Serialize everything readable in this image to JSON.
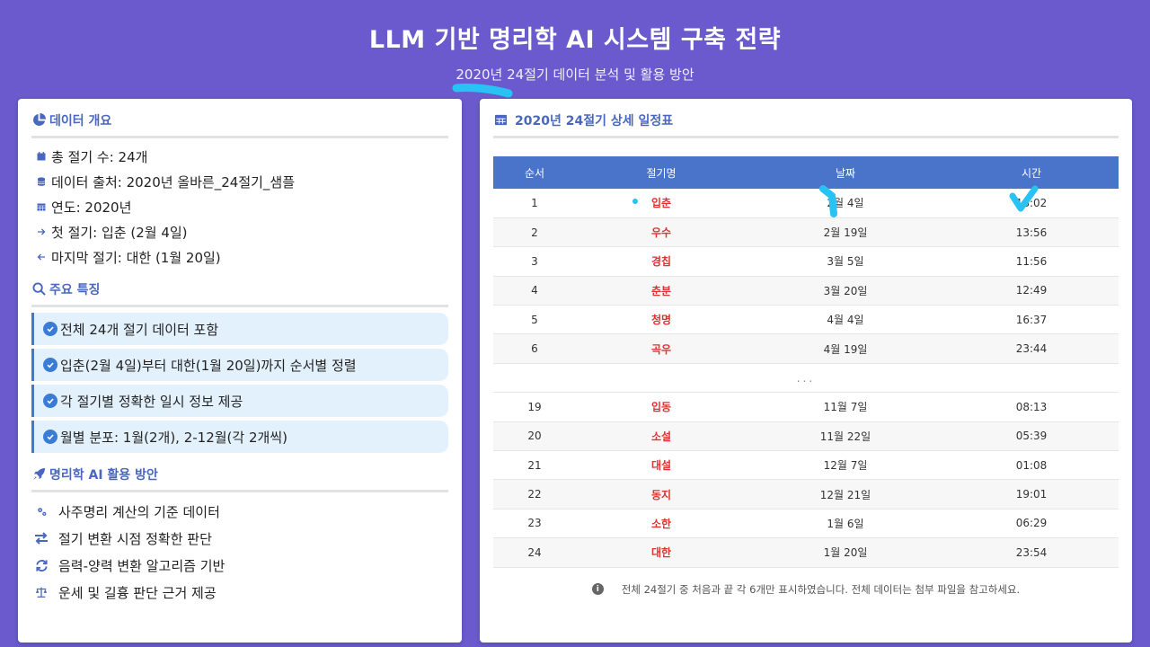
{
  "header": {
    "title": "LLM 기반 명리학 AI 시스템 구축 전략",
    "subtitle": "2020년 24절기 데이터 분석 및 활용 방안"
  },
  "overview": {
    "title": "데이터 개요",
    "items": [
      {
        "icon": "calendar-icon",
        "text": "총 절기 수: 24개"
      },
      {
        "icon": "database-icon",
        "text": "데이터 출처: 2020년 올바른_24절기_샘플"
      },
      {
        "icon": "calendar-grid-icon",
        "text": "연도: 2020년"
      },
      {
        "icon": "arrow-right-icon",
        "text": "첫 절기: 입춘 (2월 4일)"
      },
      {
        "icon": "arrow-left-icon",
        "text": "마지막 절기: 대한 (1월 20일)"
      }
    ]
  },
  "features": {
    "title": "주요 특징",
    "items": [
      "전체 24개 절기 데이터 포함",
      "입춘(2월 4일)부터 대한(1월 20일)까지 순서별 정렬",
      "각 절기별 정확한 일시 정보 제공",
      "월별 분포: 1월(2개), 2-12월(각 2개씩)"
    ]
  },
  "ai_usage": {
    "title": "명리학 AI 활용 방안",
    "items": [
      {
        "icon": "gears-icon",
        "text": "사주명리 계산의 기준 데이터"
      },
      {
        "icon": "exchange-icon",
        "text": "절기 변환 시점 정확한 판단"
      },
      {
        "icon": "sync-icon",
        "text": "음력-양력 변환 알고리즘 기반"
      },
      {
        "icon": "balance-scale-icon",
        "text": "운세 및 길흉 판단 근거 제공"
      }
    ]
  },
  "schedule": {
    "title": "2020년 24절기 상세 일정표",
    "columns": [
      "순서",
      "절기명",
      "날짜",
      "시간"
    ],
    "rows_top": [
      {
        "no": "1",
        "name": "입춘",
        "date": "2월 4일",
        "time": "18:02"
      },
      {
        "no": "2",
        "name": "우수",
        "date": "2월 19일",
        "time": "13:56"
      },
      {
        "no": "3",
        "name": "경칩",
        "date": "3월 5일",
        "time": "11:56"
      },
      {
        "no": "4",
        "name": "춘분",
        "date": "3월 20일",
        "time": "12:49"
      },
      {
        "no": "5",
        "name": "청명",
        "date": "4월 4일",
        "time": "16:37"
      },
      {
        "no": "6",
        "name": "곡우",
        "date": "4월 19일",
        "time": "23:44"
      }
    ],
    "ellipsis": "...",
    "rows_bottom": [
      {
        "no": "19",
        "name": "입동",
        "date": "11월 7일",
        "time": "08:13"
      },
      {
        "no": "20",
        "name": "소설",
        "date": "11월 22일",
        "time": "05:39"
      },
      {
        "no": "21",
        "name": "대설",
        "date": "12월 7일",
        "time": "01:08"
      },
      {
        "no": "22",
        "name": "동지",
        "date": "12월 21일",
        "time": "19:01"
      },
      {
        "no": "23",
        "name": "소한",
        "date": "1월 6일",
        "time": "06:29"
      },
      {
        "no": "24",
        "name": "대한",
        "date": "1월 20일",
        "time": "23:54"
      }
    ],
    "note": "전체 24절기 중 처음과 끝 각 6개만 표시하였습니다. 전체 데이터는 첨부 파일을 참고하세요."
  },
  "colors": {
    "background": "#6a5acd",
    "accent": "#4a74c9",
    "term_name": "#dd3333",
    "feature_bg": "#e3f1fd",
    "annotation": "#29c2f5"
  }
}
